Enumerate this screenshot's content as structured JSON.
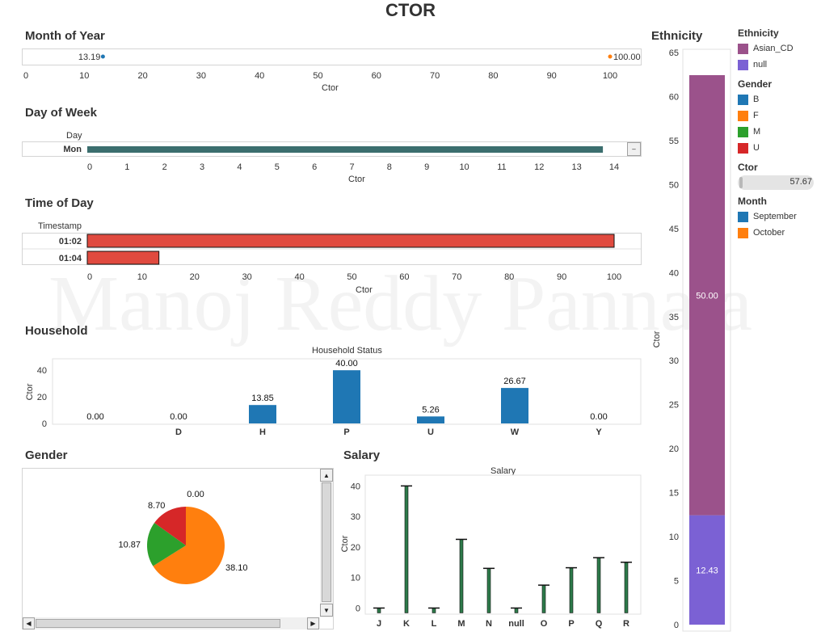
{
  "title": "CTOR",
  "watermark": "Manoj Reddy Pannala",
  "colors": {
    "blue": "#1f77b4",
    "orange": "#ff7f0e",
    "green": "#2ca02c",
    "red": "#d62728",
    "purple": "#9b528b",
    "lavender": "#7b61d4",
    "teal": "#3b6e6e",
    "coral": "#e04a3f",
    "darkgreen": "#2d7a4a"
  },
  "chart_data": [
    {
      "name": "month_of_year",
      "type": "line",
      "title": "Month of Year",
      "xlabel": "Ctor",
      "xlim": [
        0,
        100
      ],
      "xticks": [
        0,
        10,
        20,
        30,
        40,
        50,
        60,
        70,
        80,
        90,
        100
      ],
      "points": [
        {
          "label": "13.19",
          "x": 13.19
        },
        {
          "label": "100.00",
          "x": 100
        }
      ]
    },
    {
      "name": "day_of_week",
      "type": "bar",
      "title": "Day of Week",
      "category_header": "Day",
      "categories": [
        "Mon"
      ],
      "values": [
        13.7
      ],
      "xlabel": "Ctor",
      "xlim": [
        0,
        14
      ],
      "xticks": [
        0,
        1,
        2,
        3,
        4,
        5,
        6,
        7,
        8,
        9,
        10,
        11,
        12,
        13,
        14
      ]
    },
    {
      "name": "time_of_day",
      "type": "bar",
      "title": "Time of Day",
      "category_header": "Timestamp",
      "categories": [
        "01:02",
        "01:04"
      ],
      "values": [
        100,
        13.2
      ],
      "xlabel": "Ctor",
      "xlim": [
        0,
        100
      ],
      "xticks": [
        0,
        10,
        20,
        30,
        40,
        50,
        60,
        70,
        80,
        90,
        100
      ]
    },
    {
      "name": "household",
      "type": "bar",
      "title": "Household",
      "subtitle": "Household Status",
      "ylabel": "Ctor",
      "ylim": [
        0,
        48
      ],
      "yticks": [
        0,
        20,
        40
      ],
      "categories": [
        "",
        "D",
        "H",
        "P",
        "U",
        "W",
        "Y"
      ],
      "values": [
        0,
        0,
        13.85,
        40,
        5.26,
        26.67,
        0
      ],
      "labels": [
        "0.00",
        "0.00",
        "13.85",
        "40.00",
        "5.26",
        "26.67",
        "0.00"
      ]
    },
    {
      "name": "gender",
      "type": "pie",
      "title": "Gender",
      "slices": [
        {
          "label": "0.00",
          "value": 0,
          "color": "#1f77b4"
        },
        {
          "label": "38.10",
          "value": 38.1,
          "color": "#ff7f0e"
        },
        {
          "label": "10.87",
          "value": 10.87,
          "color": "#2ca02c"
        },
        {
          "label": "8.70",
          "value": 8.7,
          "color": "#d62728"
        }
      ]
    },
    {
      "name": "salary",
      "type": "bar",
      "title": "Salary",
      "subtitle": "Salary",
      "ylabel": "Ctor",
      "ylim": [
        -2,
        43
      ],
      "yticks": [
        0,
        10,
        20,
        30,
        40
      ],
      "categories": [
        "J",
        "K",
        "L",
        "M",
        "N",
        "null",
        "O",
        "P",
        "Q",
        "R"
      ],
      "values": [
        0,
        40,
        0,
        22.5,
        13,
        0,
        7.5,
        13.2,
        16.5,
        15
      ]
    },
    {
      "name": "ethnicity",
      "type": "bar",
      "title": "Ethnicity",
      "ylabel": "Ctor",
      "ylim": [
        0,
        65
      ],
      "yticks": [
        0,
        5,
        10,
        15,
        20,
        25,
        30,
        35,
        40,
        45,
        50,
        55,
        60,
        65
      ],
      "stack": [
        {
          "name": "null",
          "value": 12.43,
          "label": "12.43",
          "color": "#7b61d4"
        },
        {
          "name": "Asian_CD",
          "value": 50,
          "label": "50.00",
          "color": "#9b528b"
        }
      ]
    }
  ],
  "legend": {
    "ethnicity": {
      "title": "Ethnicity",
      "items": [
        {
          "label": "Asian_CD",
          "color": "#9b528b"
        },
        {
          "label": "null",
          "color": "#7b61d4"
        }
      ]
    },
    "gender": {
      "title": "Gender",
      "items": [
        {
          "label": "B",
          "color": "#1f77b4"
        },
        {
          "label": "F",
          "color": "#ff7f0e"
        },
        {
          "label": "M",
          "color": "#2ca02c"
        },
        {
          "label": "U",
          "color": "#d62728"
        }
      ]
    },
    "ctor": {
      "title": "Ctor",
      "value": "57.67"
    },
    "month": {
      "title": "Month",
      "items": [
        {
          "label": "September",
          "color": "#1f77b4"
        },
        {
          "label": "October",
          "color": "#ff7f0e"
        }
      ]
    }
  },
  "scroll": {
    "up": "▲",
    "down": "▼",
    "left": "◀",
    "right": "▶",
    "dash": "‒"
  }
}
